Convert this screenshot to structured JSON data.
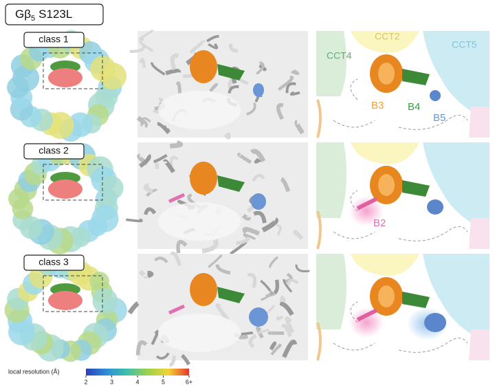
{
  "header": {
    "title": {
      "text": "Gβ",
      "subscript": "5",
      "suffix": "S123L"
    }
  },
  "rows": [
    {
      "label": "class 1",
      "annotations": [
        "CCT4",
        "CCT2",
        "CCT5",
        "B3",
        "B4",
        "B5"
      ]
    },
    {
      "label": "class 2",
      "annotations": [
        "B2"
      ]
    },
    {
      "label": "class 3"
    }
  ],
  "colorbar": {
    "label": "local resolution (Å)",
    "ticks": [
      "2",
      "3",
      "4",
      "5",
      "6+"
    ]
  }
}
